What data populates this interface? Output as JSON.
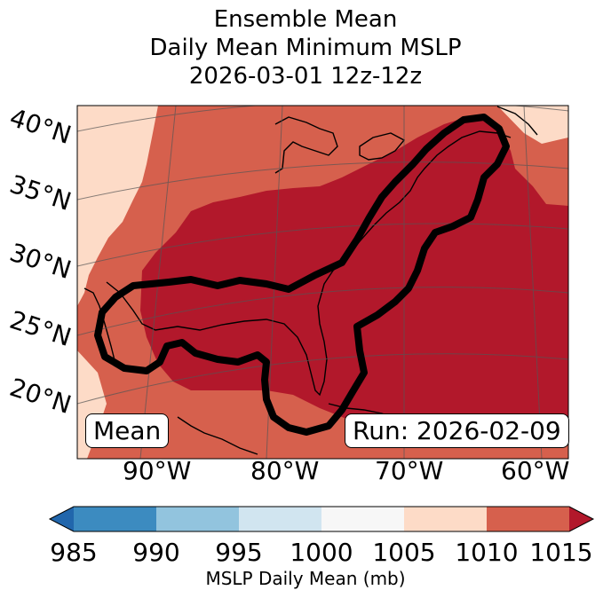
{
  "title": {
    "line1": "Ensemble Mean",
    "line2": "Daily Mean Minimum MSLP",
    "line3": "2026-03-01 12z-12z"
  },
  "map": {
    "lat_labels": [
      "40°N",
      "35°N",
      "30°N",
      "25°N",
      "20°N"
    ],
    "lon_labels": [
      "90°W",
      "80°W",
      "70°W",
      "60°W"
    ],
    "left_badge": "Mean",
    "right_badge": "Run: 2026-02-09",
    "contour_color": "#000000"
  },
  "colorbar": {
    "label": "MSLP Daily Mean (mb)",
    "ticks": [
      "985",
      "990",
      "995",
      "1000",
      "1005",
      "1010",
      "1015"
    ],
    "colors": [
      "#3c8bc0",
      "#92c4de",
      "#d1e5f0",
      "#f7f7f7",
      "#fddbc7",
      "#d6604d",
      "#b2182b"
    ],
    "under_color": "#2166ac",
    "over_color": "#b2182b"
  }
}
